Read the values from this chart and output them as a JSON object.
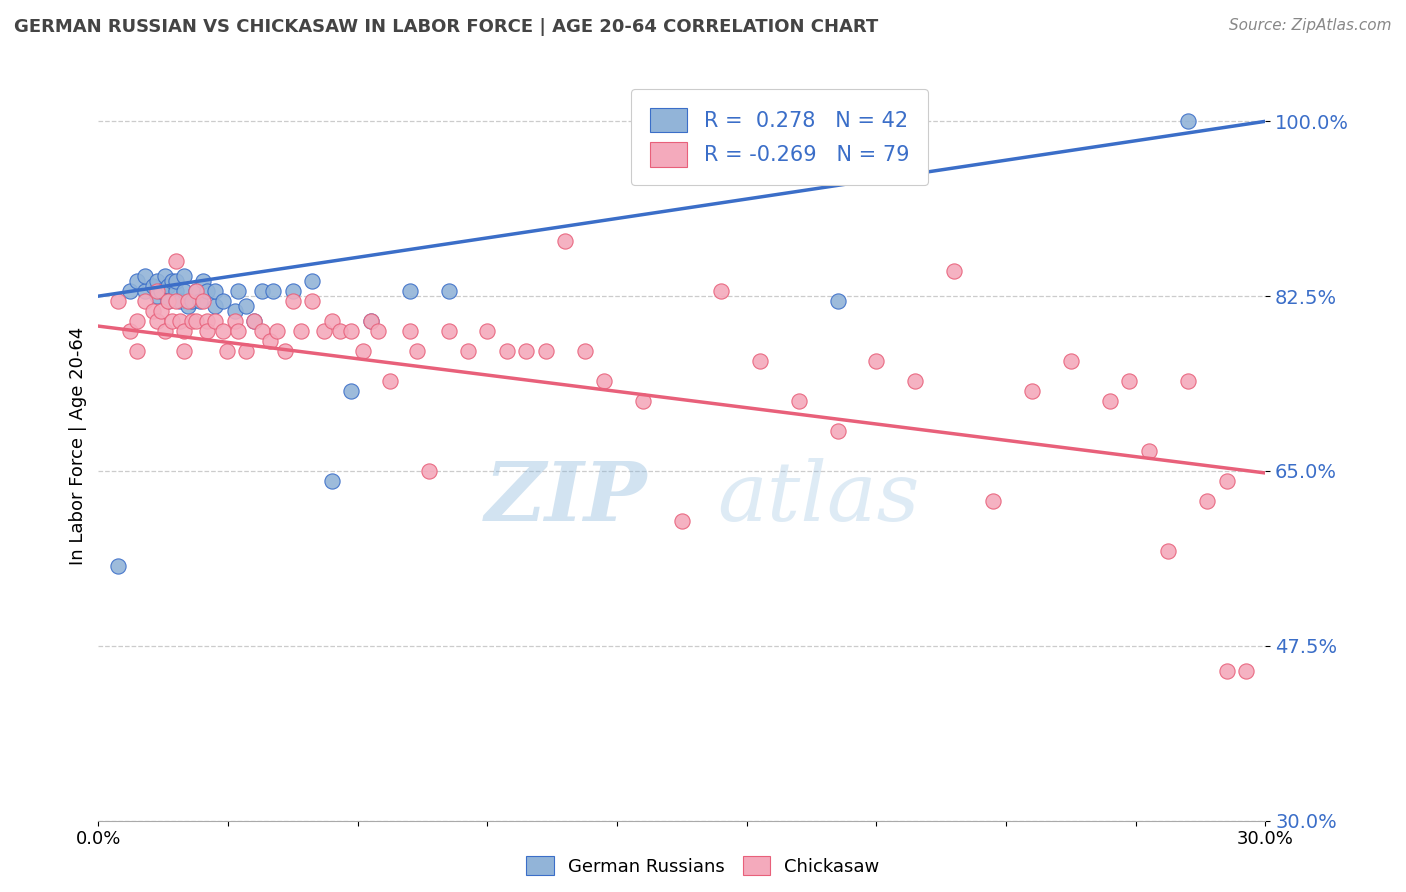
{
  "title": "GERMAN RUSSIAN VS CHICKASAW IN LABOR FORCE | AGE 20-64 CORRELATION CHART",
  "source": "Source: ZipAtlas.com",
  "ylabel": "In Labor Force | Age 20-64",
  "xlim": [
    0.0,
    0.3
  ],
  "ylim": [
    0.3,
    1.05
  ],
  "yticks": [
    0.3,
    0.475,
    0.65,
    0.825,
    1.0
  ],
  "ytick_labels": [
    "30.0%",
    "47.5%",
    "65.0%",
    "82.5%",
    "100.0%"
  ],
  "xticks": [
    0.0,
    0.0333,
    0.0667,
    0.1,
    0.1333,
    0.1667,
    0.2,
    0.2333,
    0.2667,
    0.3
  ],
  "xtick_labels_show": [
    "0.0%",
    "",
    "",
    "",
    "",
    "",
    "",
    "",
    "",
    "30.0%"
  ],
  "blue_R": 0.278,
  "blue_N": 42,
  "pink_R": -0.269,
  "pink_N": 79,
  "blue_color": "#92B4D8",
  "pink_color": "#F4AABC",
  "line_blue": "#3B6EC8",
  "line_pink": "#E8607A",
  "axis_tick_color": "#3B6EC8",
  "title_color": "#444444",
  "watermark_zip": "ZIP",
  "watermark_atlas": "atlas",
  "legend_label_blue": "German Russians",
  "legend_label_pink": "Chickasaw",
  "blue_scatter_x": [
    0.005,
    0.008,
    0.01,
    0.012,
    0.012,
    0.014,
    0.015,
    0.015,
    0.016,
    0.017,
    0.018,
    0.018,
    0.019,
    0.02,
    0.02,
    0.021,
    0.022,
    0.022,
    0.023,
    0.024,
    0.025,
    0.026,
    0.027,
    0.028,
    0.03,
    0.03,
    0.032,
    0.035,
    0.036,
    0.038,
    0.04,
    0.042,
    0.045,
    0.05,
    0.055,
    0.06,
    0.065,
    0.07,
    0.08,
    0.09,
    0.19,
    0.28
  ],
  "blue_scatter_y": [
    0.555,
    0.83,
    0.84,
    0.83,
    0.845,
    0.835,
    0.84,
    0.825,
    0.83,
    0.845,
    0.835,
    0.82,
    0.84,
    0.83,
    0.84,
    0.82,
    0.83,
    0.845,
    0.815,
    0.82,
    0.83,
    0.82,
    0.84,
    0.83,
    0.815,
    0.83,
    0.82,
    0.81,
    0.83,
    0.815,
    0.8,
    0.83,
    0.83,
    0.83,
    0.84,
    0.64,
    0.73,
    0.8,
    0.83,
    0.83,
    0.82,
    1.0
  ],
  "pink_scatter_x": [
    0.005,
    0.008,
    0.01,
    0.01,
    0.012,
    0.014,
    0.015,
    0.015,
    0.016,
    0.017,
    0.018,
    0.019,
    0.02,
    0.02,
    0.021,
    0.022,
    0.022,
    0.023,
    0.024,
    0.025,
    0.025,
    0.027,
    0.028,
    0.028,
    0.03,
    0.032,
    0.033,
    0.035,
    0.036,
    0.038,
    0.04,
    0.042,
    0.044,
    0.046,
    0.048,
    0.05,
    0.052,
    0.055,
    0.058,
    0.06,
    0.062,
    0.065,
    0.068,
    0.07,
    0.072,
    0.075,
    0.08,
    0.082,
    0.085,
    0.09,
    0.095,
    0.1,
    0.105,
    0.11,
    0.115,
    0.12,
    0.125,
    0.13,
    0.14,
    0.15,
    0.16,
    0.17,
    0.18,
    0.19,
    0.2,
    0.21,
    0.22,
    0.23,
    0.24,
    0.25,
    0.26,
    0.265,
    0.27,
    0.275,
    0.28,
    0.285,
    0.29,
    0.29,
    0.295
  ],
  "pink_scatter_y": [
    0.82,
    0.79,
    0.8,
    0.77,
    0.82,
    0.81,
    0.83,
    0.8,
    0.81,
    0.79,
    0.82,
    0.8,
    0.86,
    0.82,
    0.8,
    0.79,
    0.77,
    0.82,
    0.8,
    0.83,
    0.8,
    0.82,
    0.8,
    0.79,
    0.8,
    0.79,
    0.77,
    0.8,
    0.79,
    0.77,
    0.8,
    0.79,
    0.78,
    0.79,
    0.77,
    0.82,
    0.79,
    0.82,
    0.79,
    0.8,
    0.79,
    0.79,
    0.77,
    0.8,
    0.79,
    0.74,
    0.79,
    0.77,
    0.65,
    0.79,
    0.77,
    0.79,
    0.77,
    0.77,
    0.77,
    0.88,
    0.77,
    0.74,
    0.72,
    0.6,
    0.83,
    0.76,
    0.72,
    0.69,
    0.76,
    0.74,
    0.85,
    0.62,
    0.73,
    0.76,
    0.72,
    0.74,
    0.67,
    0.57,
    0.74,
    0.62,
    0.45,
    0.64,
    0.45
  ],
  "blue_trendline_x": [
    0.0,
    0.3
  ],
  "blue_trendline_y": [
    0.825,
    1.0
  ],
  "pink_trendline_x": [
    0.0,
    0.3
  ],
  "pink_trendline_y": [
    0.795,
    0.648
  ]
}
